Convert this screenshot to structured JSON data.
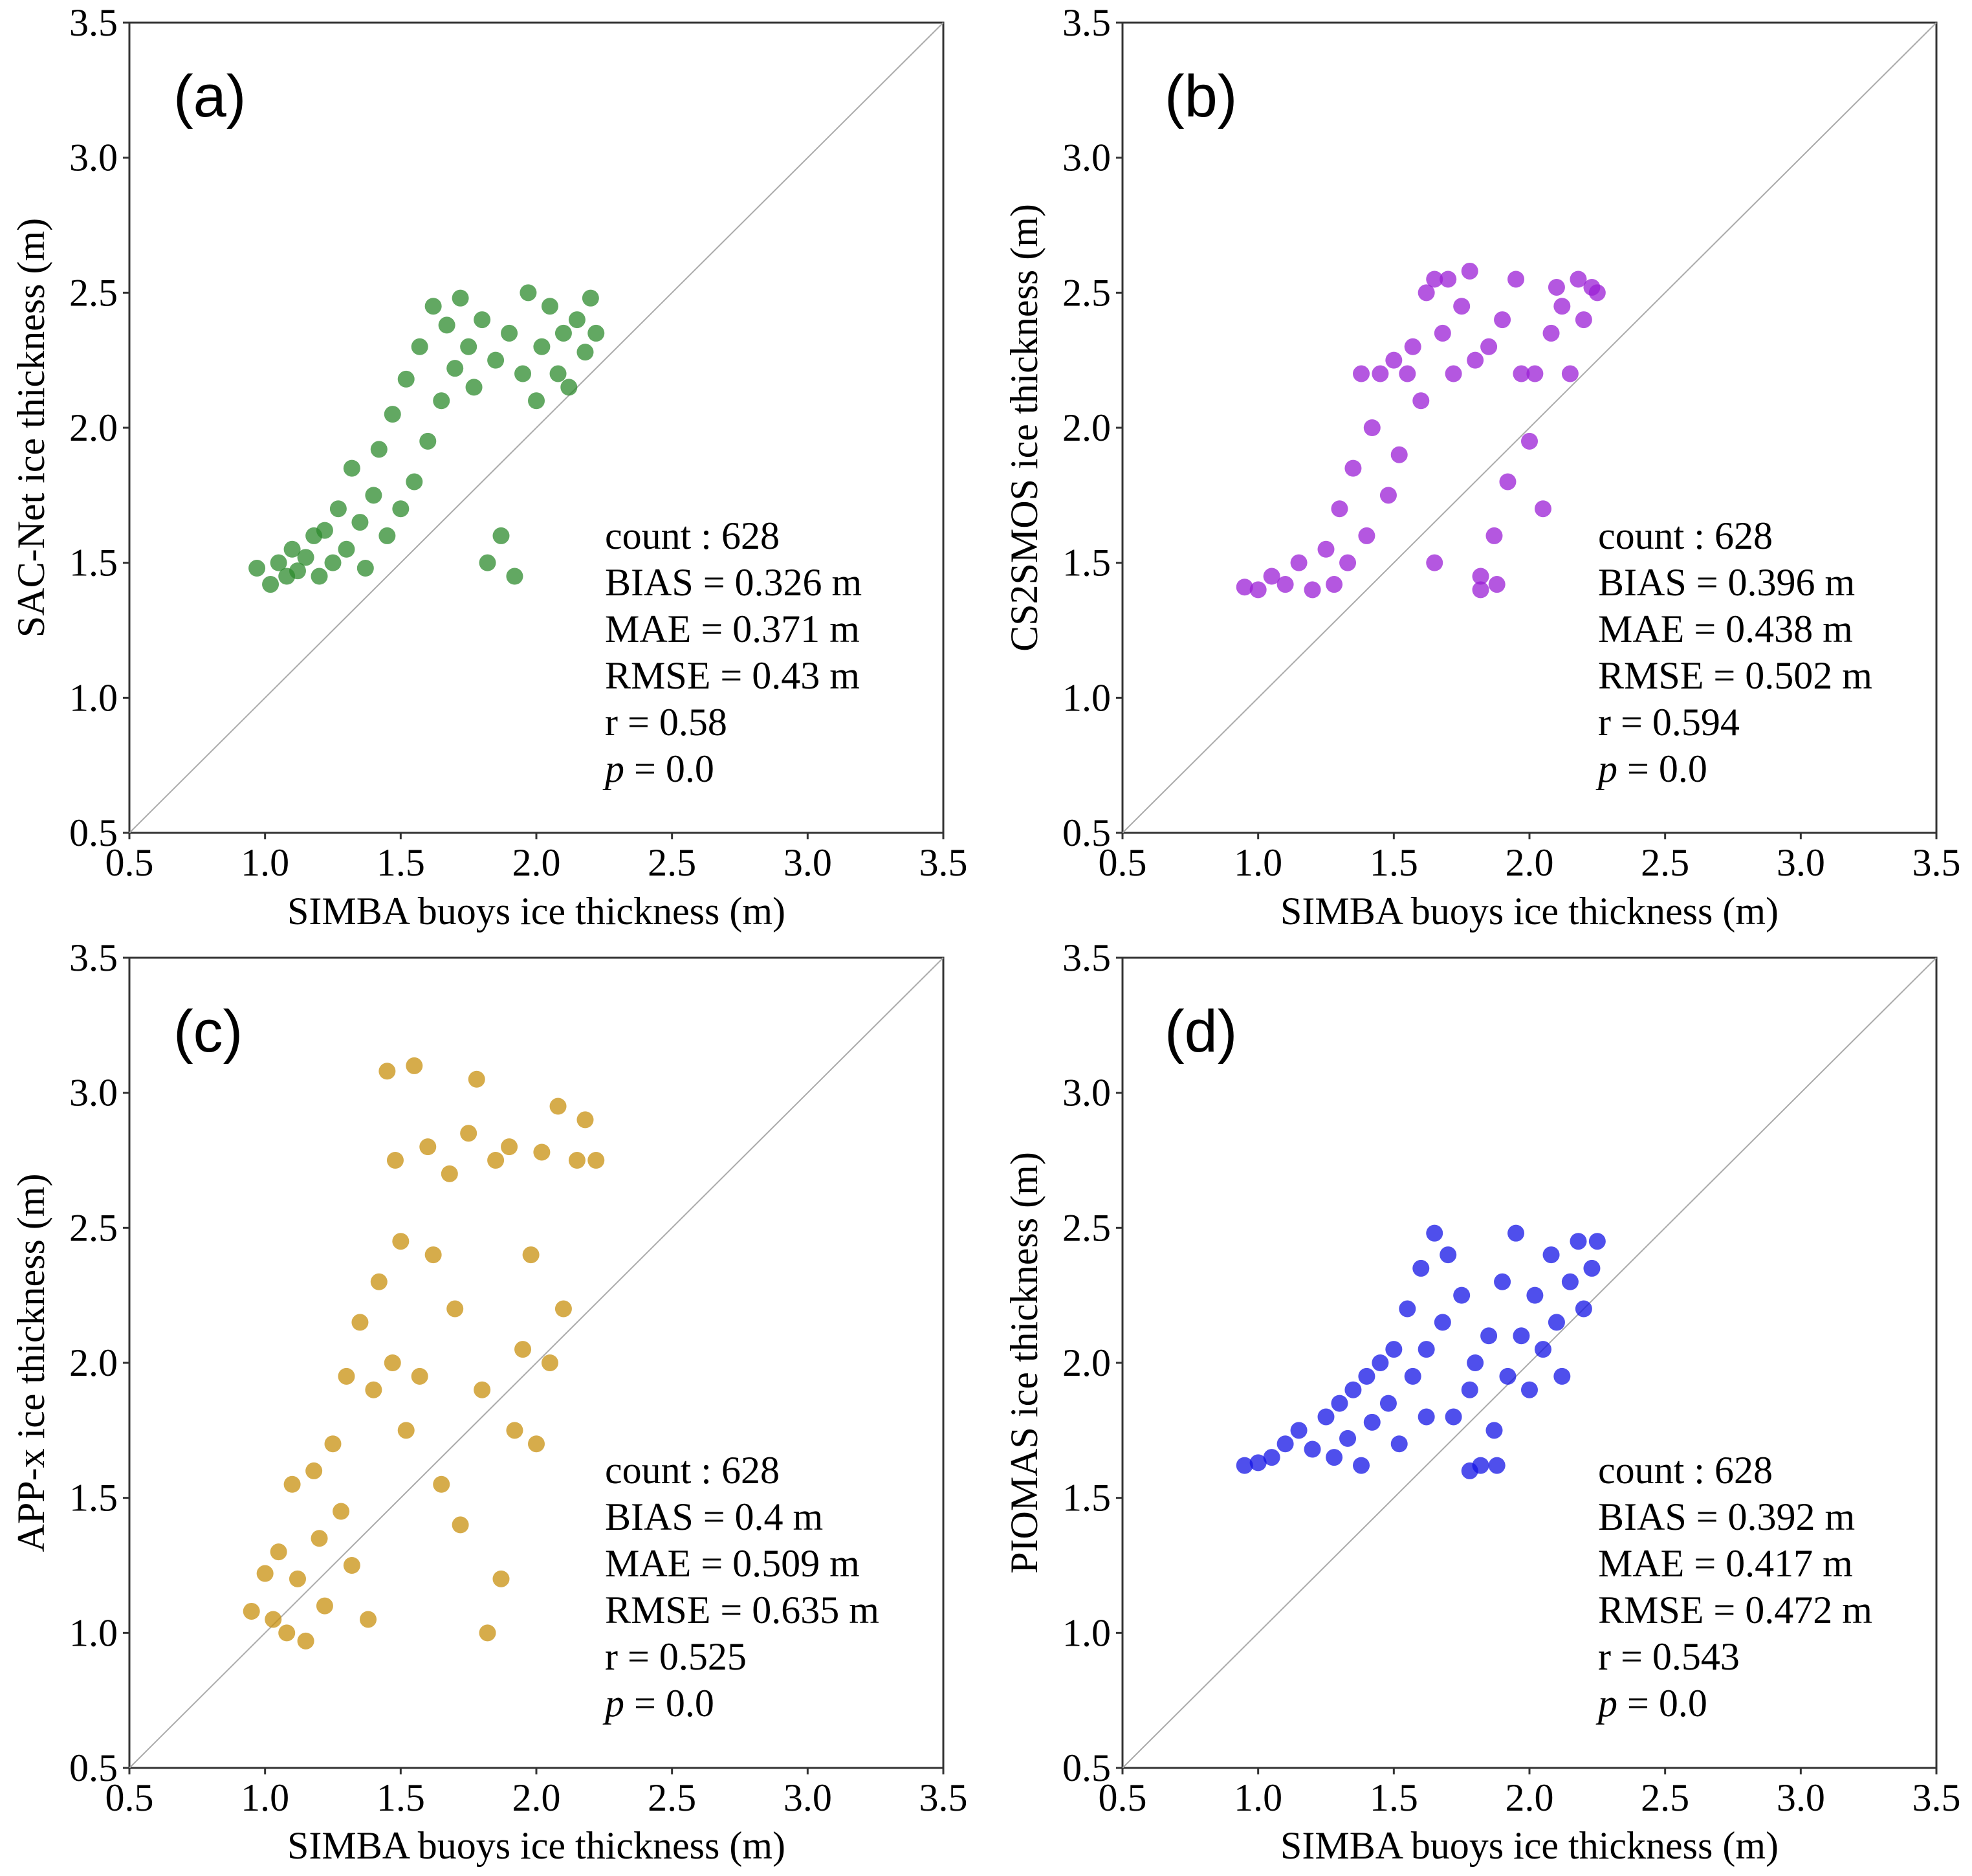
{
  "colors": {
    "a": "#2e8b2e",
    "b": "#9b1fd6",
    "c": "#c8900f",
    "d": "#1414e6"
  },
  "chart_data": [
    {
      "type": "scatter",
      "panel_label": "(a)",
      "xlabel": "SIMBA buoys ice thickness (m)",
      "ylabel": "SAC-Net ice thickness (m)",
      "xlim": [
        0.5,
        3.5
      ],
      "ylim": [
        0.5,
        3.5
      ],
      "ticks": [
        "0.5",
        "1.0",
        "1.5",
        "2.0",
        "2.5",
        "3.0",
        "3.5"
      ],
      "reference_line": "y = x",
      "color_key": "a",
      "series": [
        {
          "name": "SAC-Net",
          "points": [
            [
              0.97,
              1.48
            ],
            [
              1.02,
              1.42
            ],
            [
              1.05,
              1.5
            ],
            [
              1.08,
              1.45
            ],
            [
              1.1,
              1.55
            ],
            [
              1.12,
              1.47
            ],
            [
              1.15,
              1.52
            ],
            [
              1.18,
              1.6
            ],
            [
              1.2,
              1.45
            ],
            [
              1.22,
              1.62
            ],
            [
              1.25,
              1.5
            ],
            [
              1.27,
              1.7
            ],
            [
              1.3,
              1.55
            ],
            [
              1.32,
              1.85
            ],
            [
              1.35,
              1.65
            ],
            [
              1.37,
              1.48
            ],
            [
              1.4,
              1.75
            ],
            [
              1.42,
              1.92
            ],
            [
              1.45,
              1.6
            ],
            [
              1.47,
              2.05
            ],
            [
              1.5,
              1.7
            ],
            [
              1.52,
              2.18
            ],
            [
              1.55,
              1.8
            ],
            [
              1.57,
              2.3
            ],
            [
              1.6,
              1.95
            ],
            [
              1.62,
              2.45
            ],
            [
              1.65,
              2.1
            ],
            [
              1.67,
              2.38
            ],
            [
              1.7,
              2.22
            ],
            [
              1.72,
              2.48
            ],
            [
              1.75,
              2.3
            ],
            [
              1.77,
              2.15
            ],
            [
              1.8,
              2.4
            ],
            [
              1.82,
              1.5
            ],
            [
              1.85,
              2.25
            ],
            [
              1.87,
              1.6
            ],
            [
              1.9,
              2.35
            ],
            [
              1.92,
              1.45
            ],
            [
              1.95,
              2.2
            ],
            [
              1.97,
              2.5
            ],
            [
              2.0,
              2.1
            ],
            [
              2.02,
              2.3
            ],
            [
              2.05,
              2.45
            ],
            [
              2.08,
              2.2
            ],
            [
              2.1,
              2.35
            ],
            [
              2.12,
              2.15
            ],
            [
              2.15,
              2.4
            ],
            [
              2.18,
              2.28
            ],
            [
              2.2,
              2.48
            ],
            [
              2.22,
              2.35
            ]
          ]
        }
      ]
    },
    {
      "type": "scatter",
      "panel_label": "(b)",
      "xlabel": "SIMBA buoys ice thickness (m)",
      "ylabel": "CS2SMOS ice thickness (m)",
      "xlim": [
        0.5,
        3.5
      ],
      "ylim": [
        0.5,
        3.5
      ],
      "ticks": [
        "0.5",
        "1.0",
        "1.5",
        "2.0",
        "2.5",
        "3.0",
        "3.5"
      ],
      "reference_line": "y = x",
      "color_key": "b",
      "series": [
        {
          "name": "CS2SMOS",
          "points": [
            [
              0.95,
              1.41
            ],
            [
              1.0,
              1.4
            ],
            [
              1.05,
              1.45
            ],
            [
              1.1,
              1.42
            ],
            [
              1.15,
              1.5
            ],
            [
              1.2,
              1.4
            ],
            [
              1.25,
              1.55
            ],
            [
              1.28,
              1.42
            ],
            [
              1.3,
              1.7
            ],
            [
              1.33,
              1.5
            ],
            [
              1.35,
              1.85
            ],
            [
              1.38,
              2.2
            ],
            [
              1.4,
              1.6
            ],
            [
              1.42,
              2.0
            ],
            [
              1.45,
              2.2
            ],
            [
              1.48,
              1.75
            ],
            [
              1.5,
              2.25
            ],
            [
              1.52,
              1.9
            ],
            [
              1.55,
              2.2
            ],
            [
              1.57,
              2.3
            ],
            [
              1.6,
              2.1
            ],
            [
              1.62,
              2.5
            ],
            [
              1.65,
              2.55
            ],
            [
              1.68,
              2.35
            ],
            [
              1.7,
              2.55
            ],
            [
              1.72,
              2.2
            ],
            [
              1.75,
              2.45
            ],
            [
              1.78,
              2.58
            ],
            [
              1.8,
              2.25
            ],
            [
              1.82,
              1.45
            ],
            [
              1.85,
              2.3
            ],
            [
              1.87,
              1.6
            ],
            [
              1.9,
              2.4
            ],
            [
              1.92,
              1.8
            ],
            [
              1.95,
              2.55
            ],
            [
              1.97,
              2.2
            ],
            [
              2.0,
              1.95
            ],
            [
              2.02,
              2.2
            ],
            [
              2.05,
              1.7
            ],
            [
              2.08,
              2.35
            ],
            [
              2.1,
              2.52
            ],
            [
              2.12,
              2.45
            ],
            [
              2.15,
              2.2
            ],
            [
              2.18,
              2.55
            ],
            [
              2.2,
              2.4
            ],
            [
              2.23,
              2.52
            ],
            [
              2.25,
              2.5
            ],
            [
              1.82,
              1.4
            ],
            [
              1.88,
              1.42
            ],
            [
              1.65,
              1.5
            ]
          ]
        }
      ]
    },
    {
      "type": "scatter",
      "panel_label": "(c)",
      "xlabel": "SIMBA buoys ice thickness (m)",
      "ylabel": "APP-x ice thickness (m)",
      "xlim": [
        0.5,
        3.5
      ],
      "ylim": [
        0.5,
        3.5
      ],
      "ticks": [
        "0.5",
        "1.0",
        "1.5",
        "2.0",
        "2.5",
        "3.0",
        "3.5"
      ],
      "reference_line": "y = x",
      "color_key": "c",
      "series": [
        {
          "name": "APP-x",
          "points": [
            [
              0.95,
              1.08
            ],
            [
              1.0,
              1.22
            ],
            [
              1.03,
              1.05
            ],
            [
              1.05,
              1.3
            ],
            [
              1.08,
              1.0
            ],
            [
              1.1,
              1.55
            ],
            [
              1.12,
              1.2
            ],
            [
              1.15,
              0.97
            ],
            [
              1.18,
              1.6
            ],
            [
              1.2,
              1.35
            ],
            [
              1.22,
              1.1
            ],
            [
              1.25,
              1.7
            ],
            [
              1.28,
              1.45
            ],
            [
              1.3,
              1.95
            ],
            [
              1.32,
              1.25
            ],
            [
              1.35,
              2.15
            ],
            [
              1.38,
              1.05
            ],
            [
              1.4,
              1.9
            ],
            [
              1.42,
              2.3
            ],
            [
              1.45,
              3.08
            ],
            [
              1.47,
              2.0
            ],
            [
              1.48,
              2.75
            ],
            [
              1.5,
              2.45
            ],
            [
              1.52,
              1.75
            ],
            [
              1.55,
              3.1
            ],
            [
              1.57,
              1.95
            ],
            [
              1.6,
              2.8
            ],
            [
              1.62,
              2.4
            ],
            [
              1.65,
              1.55
            ],
            [
              1.68,
              2.7
            ],
            [
              1.7,
              2.2
            ],
            [
              1.72,
              1.4
            ],
            [
              1.75,
              2.85
            ],
            [
              1.78,
              3.05
            ],
            [
              1.8,
              1.9
            ],
            [
              1.82,
              1.0
            ],
            [
              1.85,
              2.75
            ],
            [
              1.87,
              1.2
            ],
            [
              1.9,
              2.8
            ],
            [
              1.92,
              1.75
            ],
            [
              1.95,
              2.05
            ],
            [
              1.98,
              2.4
            ],
            [
              2.0,
              1.7
            ],
            [
              2.02,
              2.78
            ],
            [
              2.05,
              2.0
            ],
            [
              2.08,
              2.95
            ],
            [
              2.1,
              2.2
            ],
            [
              2.15,
              2.75
            ],
            [
              2.18,
              2.9
            ],
            [
              2.22,
              2.75
            ]
          ]
        }
      ]
    },
    {
      "type": "scatter",
      "panel_label": "(d)",
      "xlabel": "SIMBA buoys ice thickness (m)",
      "ylabel": "PIOMAS ice thickness (m)",
      "xlim": [
        0.5,
        3.5
      ],
      "ylim": [
        0.5,
        3.5
      ],
      "ticks": [
        "0.5",
        "1.0",
        "1.5",
        "2.0",
        "2.5",
        "3.0",
        "3.5"
      ],
      "reference_line": "y = x",
      "color_key": "d",
      "series": [
        {
          "name": "PIOMAS",
          "points": [
            [
              0.95,
              1.62
            ],
            [
              1.0,
              1.63
            ],
            [
              1.05,
              1.65
            ],
            [
              1.1,
              1.7
            ],
            [
              1.15,
              1.75
            ],
            [
              1.2,
              1.68
            ],
            [
              1.25,
              1.8
            ],
            [
              1.28,
              1.65
            ],
            [
              1.3,
              1.85
            ],
            [
              1.33,
              1.72
            ],
            [
              1.35,
              1.9
            ],
            [
              1.38,
              1.62
            ],
            [
              1.4,
              1.95
            ],
            [
              1.42,
              1.78
            ],
            [
              1.45,
              2.0
            ],
            [
              1.48,
              1.85
            ],
            [
              1.5,
              2.05
            ],
            [
              1.52,
              1.7
            ],
            [
              1.55,
              2.2
            ],
            [
              1.57,
              1.95
            ],
            [
              1.6,
              2.35
            ],
            [
              1.62,
              2.05
            ],
            [
              1.65,
              2.48
            ],
            [
              1.68,
              2.15
            ],
            [
              1.7,
              2.4
            ],
            [
              1.72,
              1.8
            ],
            [
              1.75,
              2.25
            ],
            [
              1.78,
              1.9
            ],
            [
              1.8,
              2.0
            ],
            [
              1.82,
              1.62
            ],
            [
              1.85,
              2.1
            ],
            [
              1.87,
              1.75
            ],
            [
              1.9,
              2.3
            ],
            [
              1.92,
              1.95
            ],
            [
              1.95,
              2.48
            ],
            [
              1.97,
              2.1
            ],
            [
              2.0,
              1.9
            ],
            [
              2.02,
              2.25
            ],
            [
              2.05,
              2.05
            ],
            [
              2.08,
              2.4
            ],
            [
              2.1,
              2.15
            ],
            [
              2.12,
              1.95
            ],
            [
              2.15,
              2.3
            ],
            [
              2.18,
              2.45
            ],
            [
              2.2,
              2.2
            ],
            [
              2.23,
              2.35
            ],
            [
              2.25,
              2.45
            ],
            [
              1.78,
              1.6
            ],
            [
              1.88,
              1.62
            ],
            [
              1.62,
              1.8
            ]
          ]
        }
      ]
    }
  ],
  "stats": [
    {
      "count": "count : 628",
      "bias": "BIAS = 0.326 m",
      "mae": "MAE = 0.371 m",
      "rmse": "RMSE = 0.43 m",
      "r": "r = 0.58",
      "p_symbol": "p",
      "p_value": " = 0.0"
    },
    {
      "count": "count : 628",
      "bias": "BIAS = 0.396 m",
      "mae": "MAE = 0.438 m",
      "rmse": "RMSE = 0.502 m",
      "r": "r = 0.594",
      "p_symbol": "p",
      "p_value": " = 0.0"
    },
    {
      "count": "count : 628",
      "bias": "BIAS = 0.4 m",
      "mae": "MAE = 0.509 m",
      "rmse": "RMSE = 0.635 m",
      "r": "r = 0.525",
      "p_symbol": "p",
      "p_value": " = 0.0"
    },
    {
      "count": "count : 628",
      "bias": "BIAS = 0.392 m",
      "mae": "MAE = 0.417 m",
      "rmse": "RMSE = 0.472 m",
      "r": "r = 0.543",
      "p_symbol": "p",
      "p_value": " = 0.0"
    }
  ]
}
